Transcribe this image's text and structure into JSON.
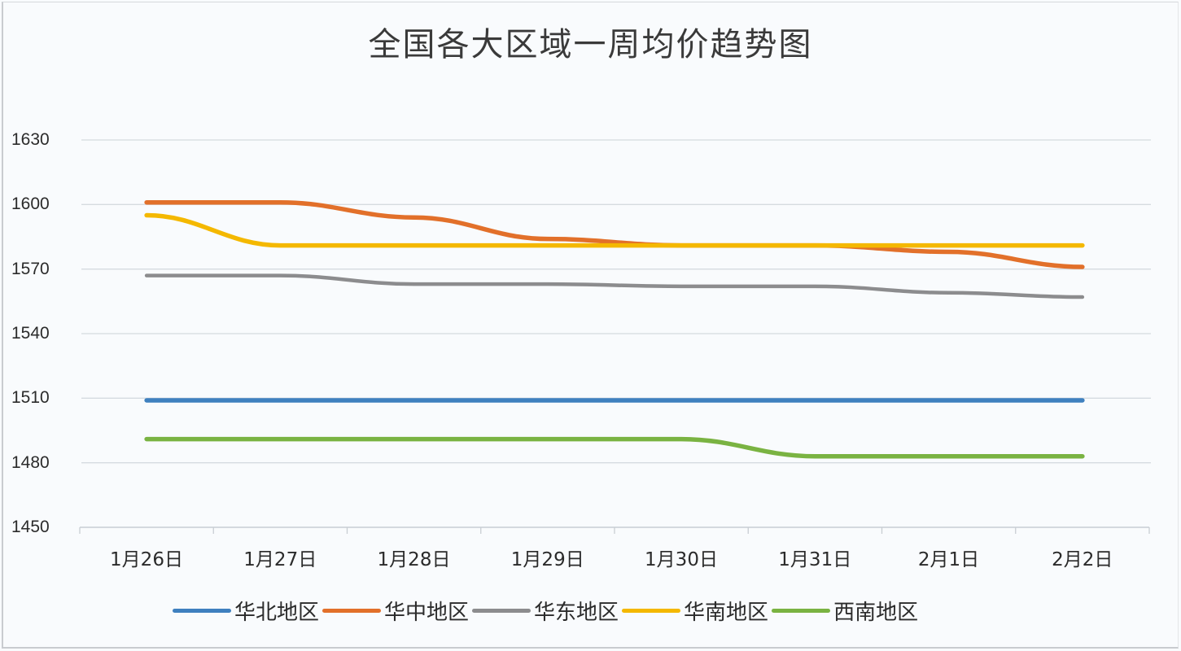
{
  "title": "全国各大区域一周均价趋势图",
  "y_axis": {
    "ticks": [
      "1630",
      "1600",
      "1570",
      "1540",
      "1510",
      "1480",
      "1450"
    ]
  },
  "x_axis": {
    "ticks": [
      "1月26日",
      "1月27日",
      "1月28日",
      "1月29日",
      "1月30日",
      "1月31日",
      "2月1日",
      "2月2日"
    ]
  },
  "legend": [
    {
      "label": "华北地区",
      "color": "#3f80bf"
    },
    {
      "label": "华中地区",
      "color": "#e2702a"
    },
    {
      "label": "华东地区",
      "color": "#8c8c8e"
    },
    {
      "label": "华南地区",
      "color": "#f4b800"
    },
    {
      "label": "西南地区",
      "color": "#7ab342"
    }
  ],
  "chart_data": {
    "type": "line",
    "title": "全国各大区域一周均价趋势图",
    "xlabel": "",
    "ylabel": "",
    "categories": [
      "1月26日",
      "1月27日",
      "1月28日",
      "1月29日",
      "1月30日",
      "1月31日",
      "2月1日",
      "2月2日"
    ],
    "ylim": [
      1450,
      1630
    ],
    "yticks": [
      1450,
      1480,
      1510,
      1540,
      1570,
      1600,
      1630
    ],
    "grid": true,
    "legend_position": "bottom",
    "series": [
      {
        "name": "华北地区",
        "color": "#3f80bf",
        "values": [
          1509,
          1509,
          1509,
          1509,
          1509,
          1509,
          1509,
          1509
        ]
      },
      {
        "name": "华中地区",
        "color": "#e2702a",
        "values": [
          1601,
          1601,
          1594,
          1584,
          1581,
          1581,
          1578,
          1571
        ]
      },
      {
        "name": "华东地区",
        "color": "#8c8c8e",
        "values": [
          1567,
          1567,
          1563,
          1563,
          1562,
          1562,
          1559,
          1557
        ]
      },
      {
        "name": "华南地区",
        "color": "#f4b800",
        "values": [
          1595,
          1581,
          1581,
          1581,
          1581,
          1581,
          1581,
          1581
        ]
      },
      {
        "name": "西南地区",
        "color": "#7ab342",
        "values": [
          1491,
          1491,
          1491,
          1491,
          1491,
          1483,
          1483,
          1483
        ]
      }
    ]
  }
}
